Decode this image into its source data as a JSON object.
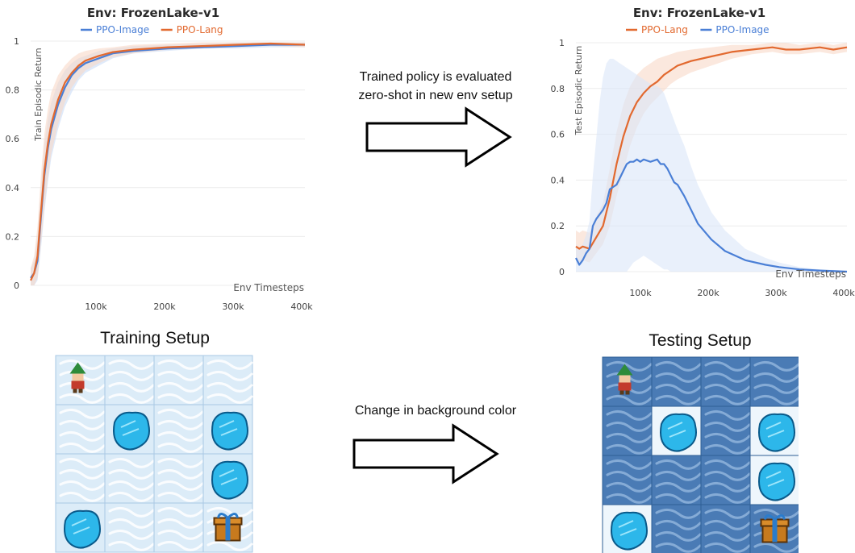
{
  "chart_data": [
    {
      "type": "line",
      "title": "Env: FrozenLake-v1",
      "xlabel": "Env Timesteps",
      "ylabel": "Train Episodic Return",
      "xlim": [
        0,
        400000
      ],
      "ylim": [
        0,
        1
      ],
      "x_ticks": [
        {
          "value": 100000,
          "label": "100k"
        },
        {
          "value": 200000,
          "label": "200k"
        },
        {
          "value": 300000,
          "label": "300k"
        },
        {
          "value": 400000,
          "label": "400k"
        }
      ],
      "y_ticks": [
        {
          "value": 0,
          "label": "0"
        },
        {
          "value": 0.2,
          "label": "0.2"
        },
        {
          "value": 0.4,
          "label": "0.4"
        },
        {
          "value": 0.6,
          "label": "0.6"
        },
        {
          "value": 0.8,
          "label": "0.8"
        },
        {
          "value": 1,
          "label": "1"
        }
      ],
      "grid": true,
      "legend_position": "top",
      "series": [
        {
          "name": "PPO-Image",
          "color": "#4a7fd6",
          "band_color": "#c9dcf7",
          "x": [
            0,
            5000,
            10000,
            15000,
            20000,
            25000,
            30000,
            40000,
            50000,
            60000,
            70000,
            80000,
            100000,
            120000,
            150000,
            200000,
            250000,
            300000,
            350000,
            400000
          ],
          "y": [
            0.03,
            0.05,
            0.1,
            0.28,
            0.45,
            0.56,
            0.64,
            0.74,
            0.81,
            0.86,
            0.89,
            0.91,
            0.93,
            0.95,
            0.96,
            0.97,
            0.975,
            0.98,
            0.985,
            0.985
          ],
          "lower": [
            0.0,
            0.0,
            0.02,
            0.15,
            0.3,
            0.42,
            0.52,
            0.64,
            0.73,
            0.79,
            0.84,
            0.87,
            0.9,
            0.93,
            0.95,
            0.96,
            0.97,
            0.97,
            0.975,
            0.975
          ],
          "upper": [
            0.07,
            0.1,
            0.2,
            0.4,
            0.58,
            0.68,
            0.75,
            0.83,
            0.88,
            0.91,
            0.93,
            0.94,
            0.96,
            0.97,
            0.98,
            0.985,
            0.99,
            0.995,
            0.995,
            0.995
          ]
        },
        {
          "name": "PPO-Lang",
          "color": "#e2692f",
          "band_color": "#f8d9c8",
          "x": [
            0,
            5000,
            10000,
            15000,
            20000,
            25000,
            30000,
            40000,
            50000,
            60000,
            70000,
            80000,
            100000,
            120000,
            150000,
            200000,
            250000,
            300000,
            350000,
            400000
          ],
          "y": [
            0.02,
            0.05,
            0.12,
            0.3,
            0.47,
            0.58,
            0.66,
            0.76,
            0.83,
            0.87,
            0.9,
            0.92,
            0.94,
            0.955,
            0.965,
            0.975,
            0.98,
            0.985,
            0.99,
            0.985
          ],
          "lower": [
            0.0,
            0.0,
            0.03,
            0.17,
            0.32,
            0.44,
            0.54,
            0.66,
            0.75,
            0.81,
            0.85,
            0.88,
            0.91,
            0.935,
            0.95,
            0.965,
            0.97,
            0.975,
            0.98,
            0.975
          ],
          "upper": [
            0.07,
            0.12,
            0.24,
            0.45,
            0.62,
            0.72,
            0.79,
            0.86,
            0.9,
            0.93,
            0.95,
            0.96,
            0.97,
            0.975,
            0.985,
            0.99,
            0.995,
            0.995,
            0.995,
            0.995
          ]
        }
      ]
    },
    {
      "type": "line",
      "title": "Env: FrozenLake-v1",
      "xlabel": "Env Timesteps",
      "ylabel": "Test Episodic Return",
      "xlim": [
        0,
        400000
      ],
      "ylim": [
        0,
        1
      ],
      "x_ticks": [
        {
          "value": 100000,
          "label": "100k"
        },
        {
          "value": 200000,
          "label": "200k"
        },
        {
          "value": 300000,
          "label": "300k"
        },
        {
          "value": 400000,
          "label": "400k"
        }
      ],
      "y_ticks": [
        {
          "value": 0,
          "label": "0"
        },
        {
          "value": 0.2,
          "label": "0.2"
        },
        {
          "value": 0.4,
          "label": "0.4"
        },
        {
          "value": 0.6,
          "label": "0.6"
        },
        {
          "value": 0.8,
          "label": "0.8"
        },
        {
          "value": 1,
          "label": "1"
        }
      ],
      "grid": true,
      "legend_position": "top",
      "series": [
        {
          "name": "PPO-Lang",
          "color": "#e2692f",
          "band_color": "#f8d9c8",
          "x": [
            0,
            5000,
            10000,
            20000,
            30000,
            40000,
            50000,
            60000,
            70000,
            80000,
            90000,
            100000,
            110000,
            120000,
            130000,
            140000,
            150000,
            170000,
            200000,
            230000,
            260000,
            290000,
            310000,
            330000,
            360000,
            380000,
            400000
          ],
          "y": [
            0.11,
            0.1,
            0.11,
            0.1,
            0.15,
            0.2,
            0.32,
            0.47,
            0.59,
            0.68,
            0.74,
            0.78,
            0.81,
            0.83,
            0.86,
            0.88,
            0.9,
            0.92,
            0.94,
            0.96,
            0.97,
            0.98,
            0.97,
            0.97,
            0.98,
            0.97,
            0.98
          ],
          "lower": [
            0.05,
            0.04,
            0.05,
            0.04,
            0.08,
            0.12,
            0.2,
            0.33,
            0.44,
            0.55,
            0.63,
            0.69,
            0.73,
            0.76,
            0.79,
            0.82,
            0.84,
            0.87,
            0.9,
            0.93,
            0.95,
            0.96,
            0.95,
            0.95,
            0.96,
            0.95,
            0.96
          ],
          "upper": [
            0.18,
            0.17,
            0.18,
            0.17,
            0.24,
            0.3,
            0.45,
            0.61,
            0.73,
            0.81,
            0.86,
            0.89,
            0.91,
            0.93,
            0.94,
            0.95,
            0.96,
            0.97,
            0.98,
            0.99,
            0.99,
            1.0,
            1.0,
            0.99,
            1.0,
            0.99,
            1.0
          ]
        },
        {
          "name": "PPO-Image",
          "color": "#4a7fd6",
          "band_color": "#dae6f9",
          "x": [
            0,
            5000,
            10000,
            15000,
            20000,
            25000,
            30000,
            35000,
            40000,
            45000,
            50000,
            55000,
            60000,
            65000,
            70000,
            75000,
            80000,
            85000,
            90000,
            95000,
            100000,
            110000,
            120000,
            125000,
            130000,
            135000,
            140000,
            145000,
            150000,
            160000,
            170000,
            180000,
            200000,
            220000,
            250000,
            280000,
            300000,
            330000,
            360000,
            400000
          ],
          "y": [
            0.06,
            0.03,
            0.05,
            0.08,
            0.1,
            0.2,
            0.23,
            0.25,
            0.27,
            0.3,
            0.36,
            0.37,
            0.38,
            0.41,
            0.44,
            0.47,
            0.48,
            0.48,
            0.49,
            0.48,
            0.49,
            0.48,
            0.49,
            0.47,
            0.47,
            0.45,
            0.42,
            0.39,
            0.38,
            0.33,
            0.27,
            0.21,
            0.14,
            0.09,
            0.05,
            0.03,
            0.02,
            0.01,
            0.005,
            0.0
          ],
          "lower": [
            0.0,
            0.0,
            0.0,
            0.0,
            0.0,
            0.0,
            0.0,
            0.0,
            0.0,
            0.0,
            0.0,
            0.0,
            0.0,
            0.0,
            0.0,
            0.0,
            0.02,
            0.04,
            0.05,
            0.06,
            0.07,
            0.05,
            0.03,
            0.02,
            0.01,
            0.01,
            0.0,
            0.0,
            0.0,
            0.0,
            0.0,
            0.0,
            0.0,
            0.0,
            0.0,
            0.0,
            0.0,
            0.0,
            0.0,
            0.0
          ],
          "upper": [
            0.12,
            0.1,
            0.12,
            0.16,
            0.22,
            0.42,
            0.58,
            0.74,
            0.85,
            0.91,
            0.93,
            0.93,
            0.92,
            0.91,
            0.9,
            0.89,
            0.88,
            0.87,
            0.86,
            0.85,
            0.84,
            0.82,
            0.81,
            0.8,
            0.78,
            0.74,
            0.7,
            0.66,
            0.62,
            0.55,
            0.46,
            0.38,
            0.26,
            0.18,
            0.1,
            0.06,
            0.04,
            0.02,
            0.01,
            0.005
          ]
        }
      ]
    }
  ],
  "setups": {
    "training_title": "Training Setup",
    "testing_title": "Testing Setup",
    "grid": [
      [
        "elf",
        "ice",
        "ice",
        "ice"
      ],
      [
        "ice",
        "hole",
        "ice",
        "hole"
      ],
      [
        "ice",
        "ice",
        "ice",
        "hole"
      ],
      [
        "hole",
        "ice",
        "ice",
        "gift"
      ]
    ],
    "training_bg": "#dcecf8",
    "testing_bg": "#4a7bb5"
  },
  "captions": {
    "top_line1": "Trained policy is evaluated",
    "top_line2": "zero-shot in new env setup",
    "bottom": "Change in background color"
  }
}
